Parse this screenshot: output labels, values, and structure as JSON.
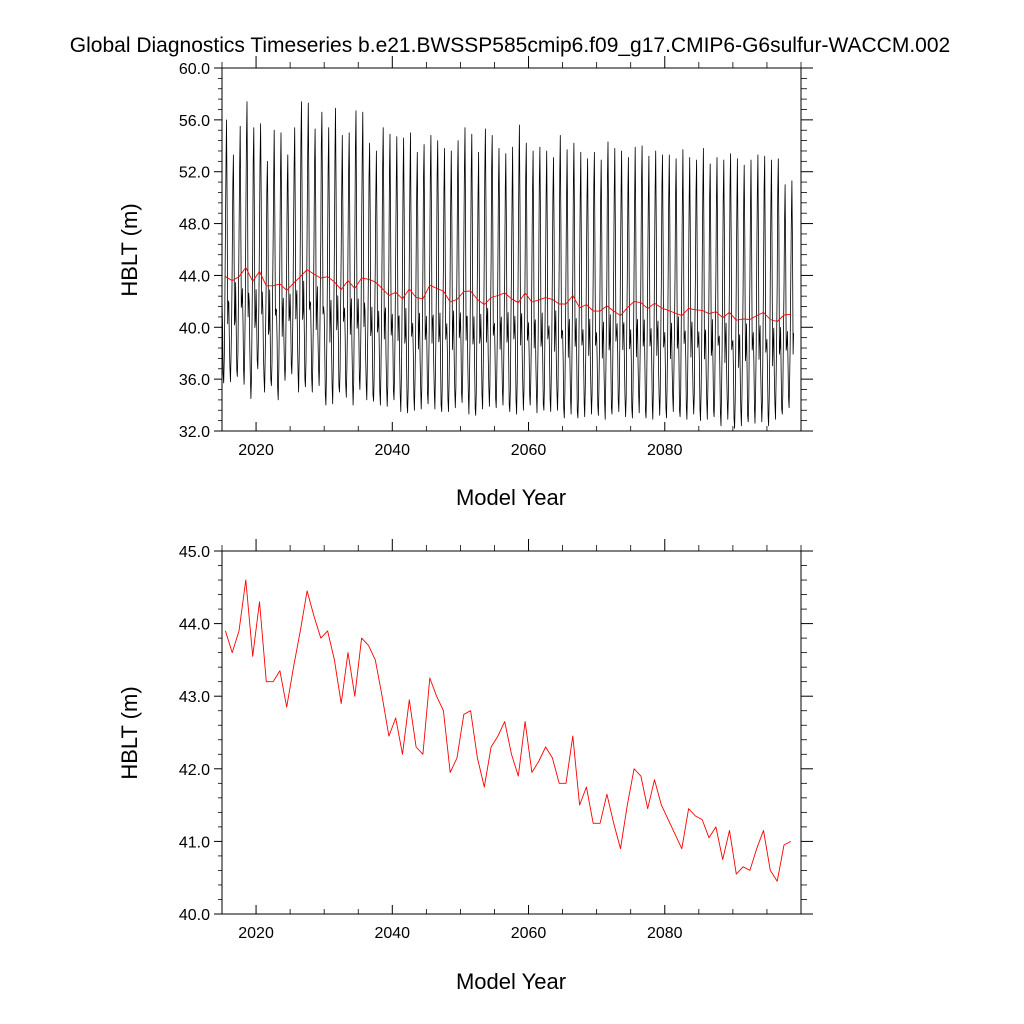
{
  "figure_title": "Global Diagnostics Timeseries b.e21.BWSSP585cmip6.f09_g17.CMIP6-G6sulfur-WACCM.002",
  "chart_data": [
    {
      "type": "line",
      "title": "",
      "xlabel": "Model Year",
      "ylabel": "HBLT (m)",
      "xlim": [
        2015,
        2100
      ],
      "ylim": [
        32.0,
        60.0
      ],
      "xticks": [
        2020,
        2040,
        2060,
        2080
      ],
      "yticks": [
        32.0,
        36.0,
        40.0,
        44.0,
        48.0,
        52.0,
        56.0,
        60.0
      ],
      "ytick_labels": [
        "32.0",
        "36.0",
        "40.0",
        "44.0",
        "48.0",
        "52.0",
        "56.0",
        "60.0"
      ],
      "grid": false,
      "legend": "none",
      "series": [
        {
          "color": "#000000",
          "kind": "monthly",
          "note_values": "monthly values per year listed as [year, annual_max, annual_min]",
          "annual_extremes": [
            [
              2015,
              56.0,
              35.7
            ],
            [
              2016,
              53.3,
              35.8
            ],
            [
              2017,
              55.5,
              36.2
            ],
            [
              2018,
              57.4,
              35.6
            ],
            [
              2019,
              55.4,
              34.5
            ],
            [
              2020,
              55.7,
              36.8
            ],
            [
              2021,
              52.8,
              35.0
            ],
            [
              2022,
              55.2,
              35.5
            ],
            [
              2023,
              55.0,
              34.4
            ],
            [
              2024,
              53.3,
              35.9
            ],
            [
              2025,
              55.4,
              36.4
            ],
            [
              2026,
              57.4,
              35.0
            ],
            [
              2027,
              57.3,
              35.4
            ],
            [
              2028,
              55.3,
              35.0
            ],
            [
              2029,
              56.6,
              35.5
            ],
            [
              2030,
              55.4,
              34.0
            ],
            [
              2031,
              56.9,
              34.1
            ],
            [
              2032,
              54.8,
              35.0
            ],
            [
              2033,
              55.0,
              34.6
            ],
            [
              2034,
              56.7,
              34.0
            ],
            [
              2035,
              56.6,
              35.2
            ],
            [
              2036,
              54.2,
              34.4
            ],
            [
              2037,
              53.6,
              34.3
            ],
            [
              2038,
              55.4,
              34.0
            ],
            [
              2039,
              54.9,
              33.9
            ],
            [
              2040,
              54.7,
              34.4
            ],
            [
              2041,
              54.6,
              33.5
            ],
            [
              2042,
              55.0,
              33.4
            ],
            [
              2043,
              53.5,
              33.6
            ],
            [
              2044,
              54.1,
              33.7
            ],
            [
              2045,
              54.8,
              34.1
            ],
            [
              2046,
              54.4,
              33.7
            ],
            [
              2047,
              53.8,
              33.5
            ],
            [
              2048,
              53.6,
              33.5
            ],
            [
              2049,
              54.4,
              33.8
            ],
            [
              2050,
              55.4,
              34.2
            ],
            [
              2051,
              54.9,
              33.3
            ],
            [
              2052,
              53.5,
              33.2
            ],
            [
              2053,
              55.3,
              33.7
            ],
            [
              2054,
              54.8,
              33.9
            ],
            [
              2055,
              53.8,
              33.8
            ],
            [
              2056,
              53.4,
              34.0
            ],
            [
              2057,
              53.9,
              33.5
            ],
            [
              2058,
              55.6,
              33.3
            ],
            [
              2059,
              54.2,
              33.6
            ],
            [
              2060,
              53.6,
              34.0
            ],
            [
              2061,
              53.9,
              33.4
            ],
            [
              2062,
              53.6,
              33.6
            ],
            [
              2063,
              53.1,
              33.5
            ],
            [
              2064,
              54.8,
              33.6
            ],
            [
              2065,
              53.7,
              33.0
            ],
            [
              2066,
              54.2,
              33.3
            ],
            [
              2067,
              53.5,
              33.0
            ],
            [
              2068,
              53.0,
              33.1
            ],
            [
              2069,
              53.5,
              33.3
            ],
            [
              2070,
              52.9,
              33.2
            ],
            [
              2071,
              54.3,
              32.9
            ],
            [
              2072,
              53.8,
              33.3
            ],
            [
              2073,
              53.6,
              33.5
            ],
            [
              2074,
              53.1,
              33.1
            ],
            [
              2075,
              53.9,
              33.0
            ],
            [
              2076,
              54.0,
              33.4
            ],
            [
              2077,
              53.2,
              33.0
            ],
            [
              2078,
              53.6,
              32.9
            ],
            [
              2079,
              53.3,
              33.2
            ],
            [
              2080,
              53.3,
              33.0
            ],
            [
              2081,
              53.0,
              33.5
            ],
            [
              2082,
              53.7,
              33.1
            ],
            [
              2083,
              53.1,
              32.9
            ],
            [
              2084,
              52.9,
              33.3
            ],
            [
              2085,
              53.8,
              32.8
            ],
            [
              2086,
              52.6,
              32.9
            ],
            [
              2087,
              53.1,
              33.1
            ],
            [
              2088,
              52.9,
              32.4
            ],
            [
              2089,
              53.4,
              32.9
            ],
            [
              2090,
              53.0,
              32.2
            ],
            [
              2091,
              52.5,
              32.4
            ],
            [
              2092,
              52.9,
              32.7
            ],
            [
              2093,
              53.3,
              32.6
            ],
            [
              2094,
              53.2,
              32.7
            ],
            [
              2095,
              52.9,
              32.4
            ],
            [
              2096,
              53.0,
              32.9
            ],
            [
              2097,
              51.0,
              33.3
            ],
            [
              2098,
              51.3,
              33.8
            ]
          ]
        },
        {
          "color": "#ff0000",
          "kind": "annual",
          "x": [
            2015,
            2016,
            2017,
            2018,
            2019,
            2020,
            2021,
            2022,
            2023,
            2024,
            2025,
            2026,
            2027,
            2028,
            2029,
            2030,
            2031,
            2032,
            2033,
            2034,
            2035,
            2036,
            2037,
            2038,
            2039,
            2040,
            2041,
            2042,
            2043,
            2044,
            2045,
            2046,
            2047,
            2048,
            2049,
            2050,
            2051,
            2052,
            2053,
            2054,
            2055,
            2056,
            2057,
            2058,
            2059,
            2060,
            2061,
            2062,
            2063,
            2064,
            2065,
            2066,
            2067,
            2068,
            2069,
            2070,
            2071,
            2072,
            2073,
            2074,
            2075,
            2076,
            2077,
            2078,
            2079,
            2080,
            2081,
            2082,
            2083,
            2084,
            2085,
            2086,
            2087,
            2088,
            2089,
            2090,
            2091,
            2092,
            2093,
            2094,
            2095,
            2096,
            2097,
            2098
          ],
          "values": [
            43.9,
            43.6,
            43.9,
            44.6,
            43.55,
            44.3,
            43.2,
            43.2,
            43.35,
            42.85,
            43.4,
            43.9,
            44.45,
            44.1,
            43.8,
            43.9,
            43.5,
            42.9,
            43.6,
            43.0,
            43.8,
            43.7,
            43.5,
            43.0,
            42.45,
            42.7,
            42.2,
            42.95,
            42.3,
            42.2,
            43.25,
            43.0,
            42.8,
            41.95,
            42.15,
            42.75,
            42.8,
            42.15,
            41.75,
            42.3,
            42.45,
            42.65,
            42.2,
            41.9,
            42.65,
            41.95,
            42.1,
            42.3,
            42.15,
            41.8,
            41.8,
            42.45,
            41.5,
            41.75,
            41.25,
            41.25,
            41.65,
            41.25,
            40.9,
            41.5,
            42.0,
            41.9,
            41.45,
            41.85,
            41.5,
            41.3,
            41.1,
            40.9,
            41.45,
            41.35,
            41.3,
            41.05,
            41.2,
            40.75,
            41.15,
            40.55,
            40.65,
            40.6,
            40.9,
            41.15,
            40.6,
            40.45,
            40.95,
            41.0
          ]
        }
      ]
    },
    {
      "type": "line",
      "title": "",
      "xlabel": "Model Year",
      "ylabel": "HBLT (m)",
      "xlim": [
        2015,
        2100
      ],
      "ylim": [
        40.0,
        45.0
      ],
      "xticks": [
        2020,
        2040,
        2060,
        2080
      ],
      "yticks": [
        40.0,
        41.0,
        42.0,
        43.0,
        44.0,
        45.0
      ],
      "ytick_labels": [
        "40.0",
        "41.0",
        "42.0",
        "43.0",
        "44.0",
        "45.0"
      ],
      "grid": false,
      "legend": "none",
      "series": [
        {
          "color": "#ff0000",
          "kind": "annual",
          "x": [
            2015,
            2016,
            2017,
            2018,
            2019,
            2020,
            2021,
            2022,
            2023,
            2024,
            2025,
            2026,
            2027,
            2028,
            2029,
            2030,
            2031,
            2032,
            2033,
            2034,
            2035,
            2036,
            2037,
            2038,
            2039,
            2040,
            2041,
            2042,
            2043,
            2044,
            2045,
            2046,
            2047,
            2048,
            2049,
            2050,
            2051,
            2052,
            2053,
            2054,
            2055,
            2056,
            2057,
            2058,
            2059,
            2060,
            2061,
            2062,
            2063,
            2064,
            2065,
            2066,
            2067,
            2068,
            2069,
            2070,
            2071,
            2072,
            2073,
            2074,
            2075,
            2076,
            2077,
            2078,
            2079,
            2080,
            2081,
            2082,
            2083,
            2084,
            2085,
            2086,
            2087,
            2088,
            2089,
            2090,
            2091,
            2092,
            2093,
            2094,
            2095,
            2096,
            2097,
            2098
          ],
          "values": [
            43.9,
            43.6,
            43.9,
            44.6,
            43.55,
            44.3,
            43.2,
            43.2,
            43.35,
            42.85,
            43.4,
            43.9,
            44.45,
            44.1,
            43.8,
            43.9,
            43.5,
            42.9,
            43.6,
            43.0,
            43.8,
            43.7,
            43.5,
            43.0,
            42.45,
            42.7,
            42.2,
            42.95,
            42.3,
            42.2,
            43.25,
            43.0,
            42.8,
            41.95,
            42.15,
            42.75,
            42.8,
            42.15,
            41.75,
            42.3,
            42.45,
            42.65,
            42.2,
            41.9,
            42.65,
            41.95,
            42.1,
            42.3,
            42.15,
            41.8,
            41.8,
            42.45,
            41.5,
            41.75,
            41.25,
            41.25,
            41.65,
            41.25,
            40.9,
            41.5,
            42.0,
            41.9,
            41.45,
            41.85,
            41.5,
            41.3,
            41.1,
            40.9,
            41.45,
            41.35,
            41.3,
            41.05,
            41.2,
            40.75,
            41.15,
            40.55,
            40.65,
            40.6,
            40.9,
            41.15,
            40.6,
            40.45,
            40.95,
            41.0
          ]
        }
      ]
    }
  ]
}
